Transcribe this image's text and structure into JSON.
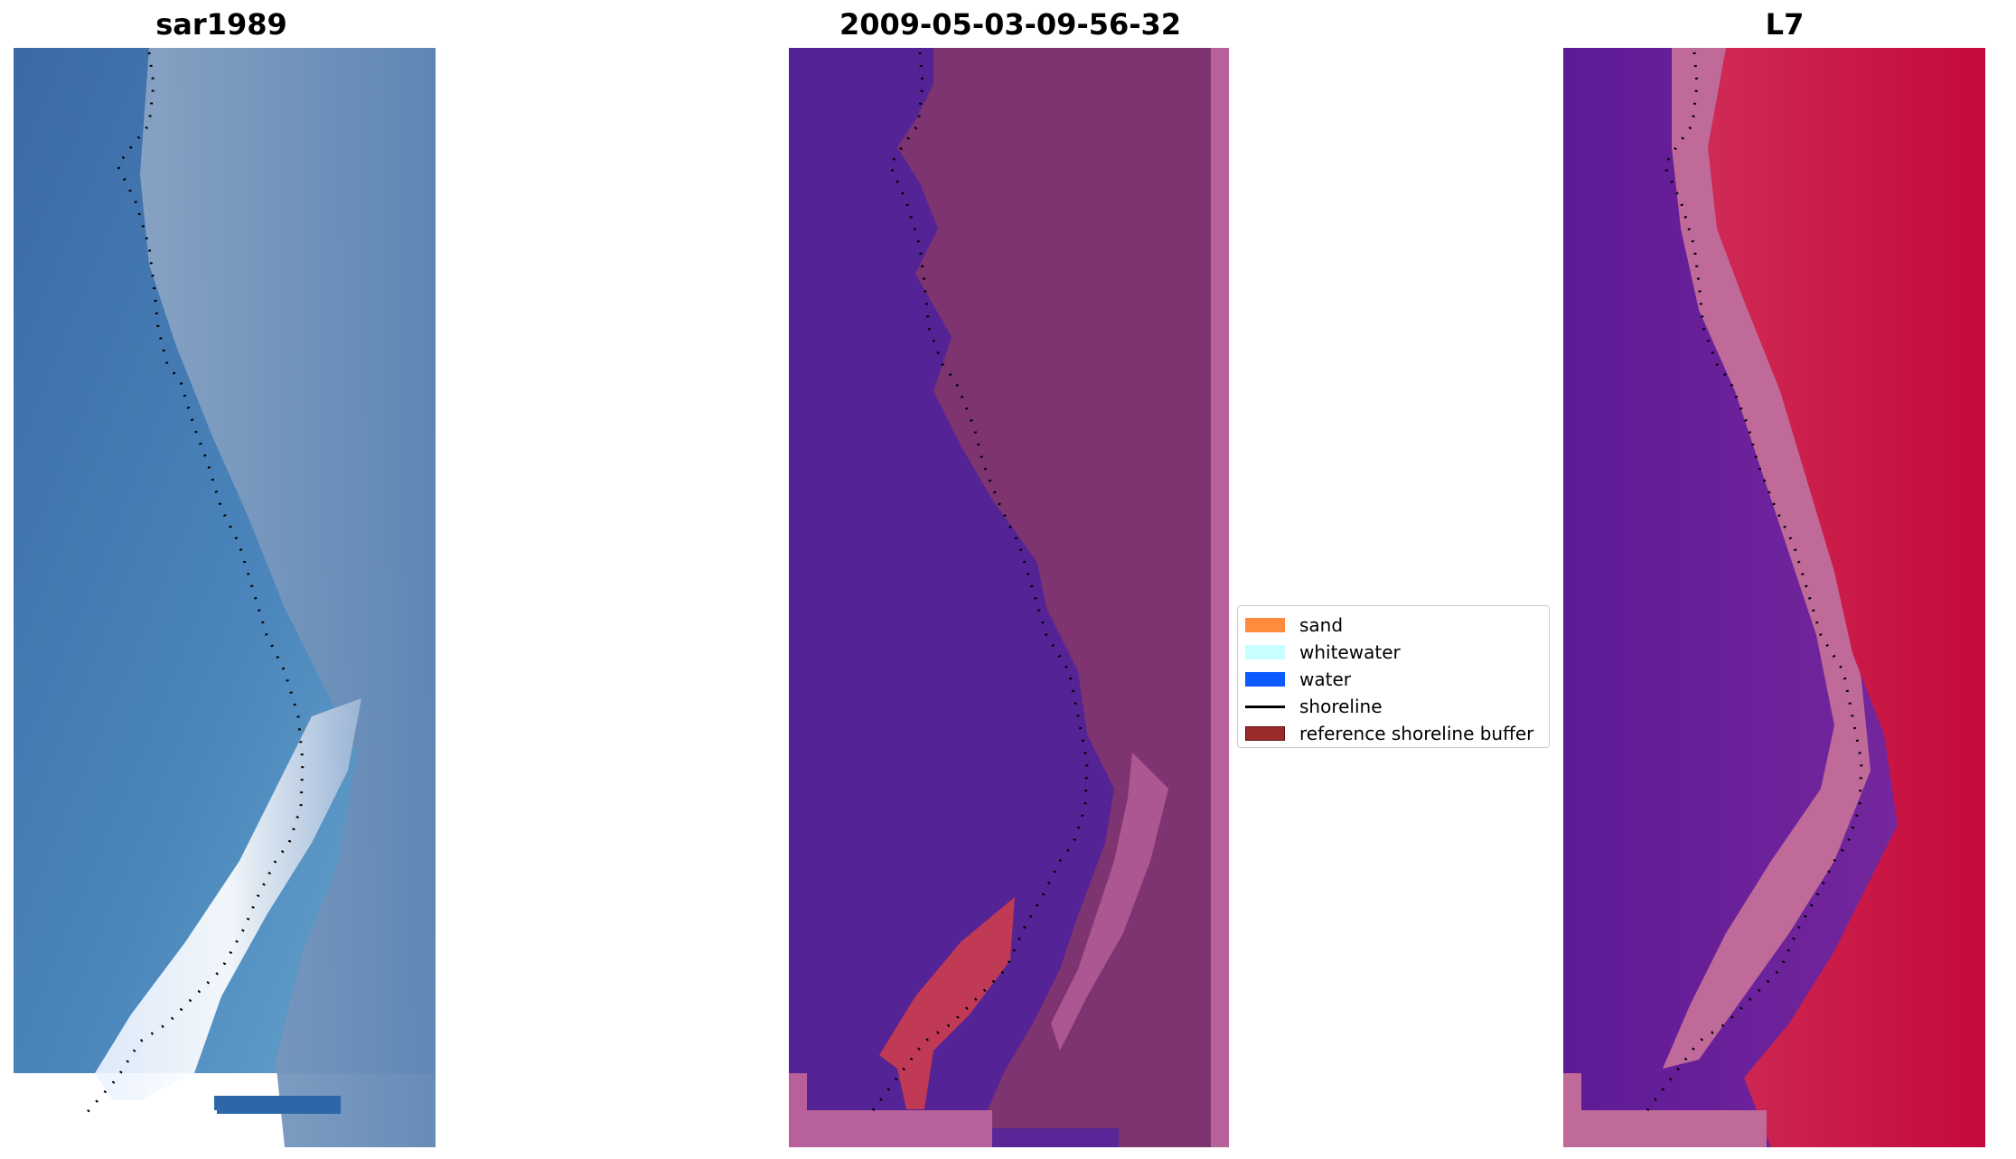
{
  "panels": {
    "left": {
      "title": "sar1989"
    },
    "middle": {
      "title": "2009-05-03-09-56-32"
    },
    "right": {
      "title": "L7"
    }
  },
  "legend": {
    "items": [
      {
        "label": "sand",
        "color": "#ff8c3c",
        "kind": "patch"
      },
      {
        "label": "whitewater",
        "color": "#c8ffff",
        "kind": "patch"
      },
      {
        "label": "water",
        "color": "#0a5aff",
        "kind": "patch"
      },
      {
        "label": "shoreline",
        "color": "#000000",
        "kind": "line"
      },
      {
        "label": "reference shoreline buffer",
        "color": "#9b2a2a",
        "kind": "patch"
      }
    ]
  },
  "colors": {
    "sar_water_deep": "#3f6fa8",
    "sar_water_light": "#6aa6cf",
    "sar_land": "#7f9ab8",
    "sar_whitewater": "#f2f4ff",
    "mid_water": "#542395",
    "mid_land": "#7d3470",
    "mid_edge": "#b8609a",
    "mid_buffer": "#c03a55",
    "right_water": "#6b1a9a",
    "right_land": "#c4103e",
    "right_edge": "#c06a9a"
  }
}
